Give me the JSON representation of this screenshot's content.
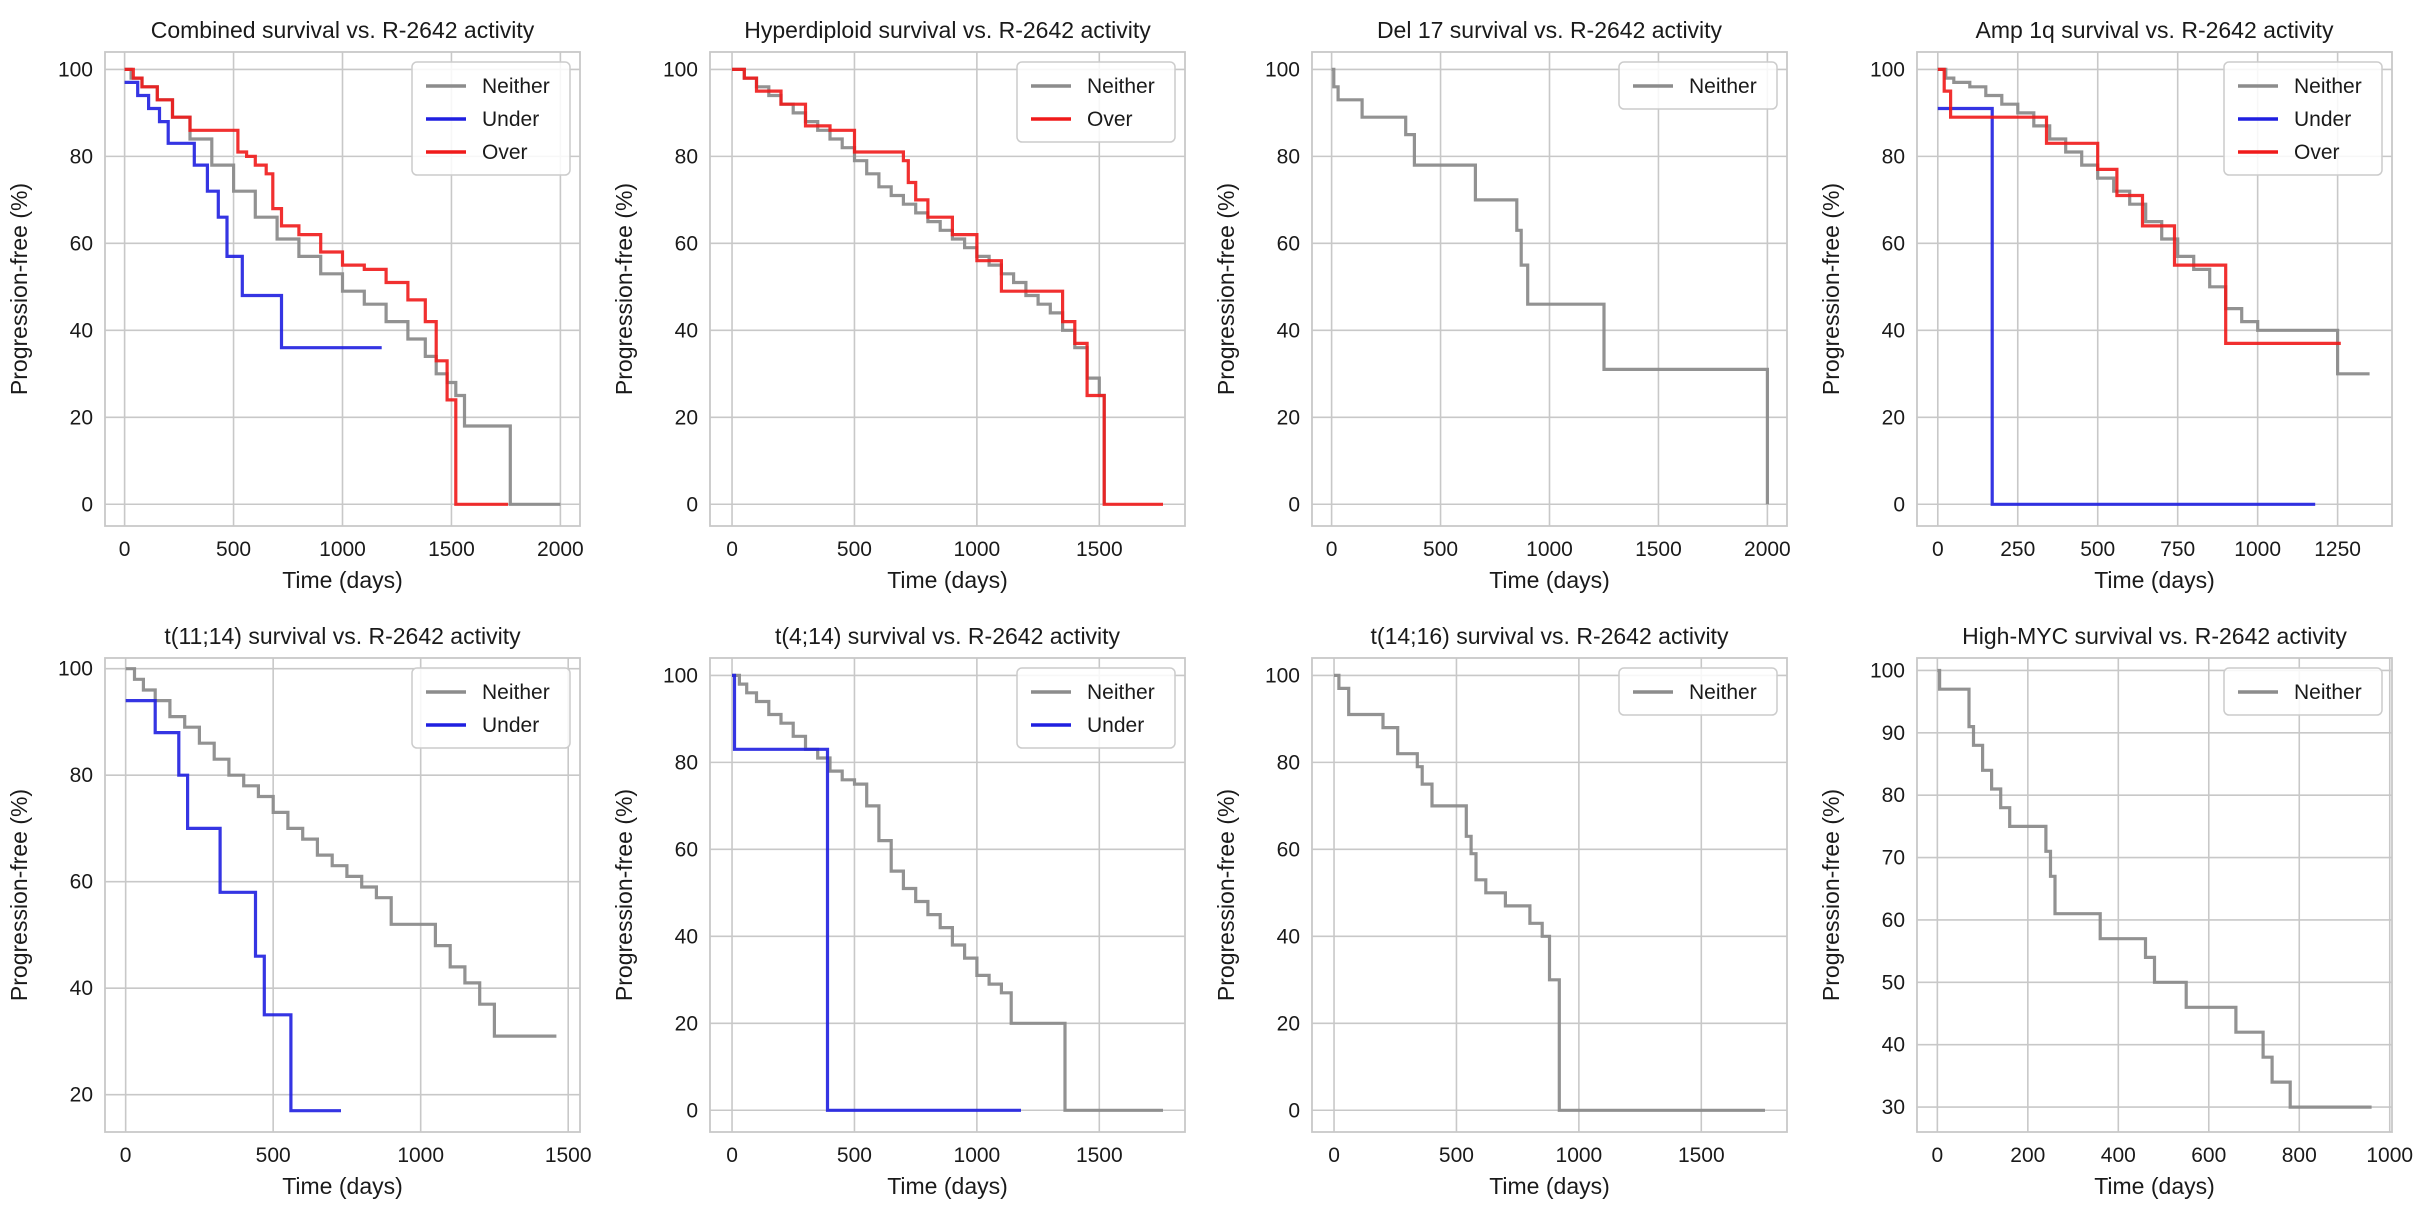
{
  "colors": {
    "neither": "#8c8c8c",
    "under": "#1f1fe0",
    "over": "#f01a1a",
    "grid": "#c8c8c8",
    "spine": "#c8c8c8"
  },
  "chart_data": [
    {
      "type": "line",
      "title": "Combined survival vs. R-2642 activity",
      "xlabel": "Time (days)",
      "ylabel": "Progression-free (%)",
      "xlim": [
        -90,
        2090
      ],
      "ylim": [
        -5,
        104
      ],
      "xticks": [
        0,
        500,
        1000,
        1500,
        2000
      ],
      "yticks": [
        0,
        20,
        40,
        60,
        80,
        100
      ],
      "legend": [
        "Neither",
        "Under",
        "Over"
      ],
      "series": [
        {
          "name": "Neither",
          "color_key": "neither",
          "x": [
            0,
            30,
            80,
            150,
            220,
            300,
            400,
            500,
            600,
            700,
            800,
            900,
            1000,
            1100,
            1200,
            1300,
            1380,
            1430,
            1480,
            1520,
            1560,
            1770,
            2000
          ],
          "y": [
            100,
            98,
            96,
            93,
            89,
            84,
            78,
            72,
            66,
            61,
            57,
            53,
            49,
            46,
            42,
            38,
            34,
            30,
            28,
            25,
            18,
            0,
            0
          ]
        },
        {
          "name": "Under",
          "color_key": "under",
          "x": [
            0,
            60,
            110,
            160,
            200,
            230,
            320,
            380,
            430,
            470,
            540,
            720,
            1180
          ],
          "y": [
            97,
            94,
            91,
            88,
            83,
            83,
            78,
            72,
            66,
            57,
            48,
            36,
            36
          ]
        },
        {
          "name": "Over",
          "color_key": "over",
          "x": [
            0,
            40,
            80,
            150,
            220,
            300,
            400,
            520,
            560,
            600,
            650,
            680,
            720,
            800,
            900,
            1000,
            1100,
            1200,
            1300,
            1380,
            1430,
            1480,
            1520,
            1760
          ],
          "y": [
            100,
            98,
            96,
            93,
            89,
            86,
            86,
            81,
            80,
            78,
            76,
            68,
            64,
            62,
            58,
            55,
            54,
            51,
            47,
            42,
            33,
            24,
            0,
            0
          ]
        }
      ]
    },
    {
      "type": "line",
      "title": "Hyperdiploid survival vs. R-2642 activity",
      "xlabel": "Time (days)",
      "ylabel": "Progression-free (%)",
      "xlim": [
        -90,
        1850
      ],
      "ylim": [
        -5,
        104
      ],
      "xticks": [
        0,
        500,
        1000,
        1500
      ],
      "yticks": [
        0,
        20,
        40,
        60,
        80,
        100
      ],
      "legend": [
        "Neither",
        "Over"
      ],
      "series": [
        {
          "name": "Neither",
          "color_key": "neither",
          "x": [
            0,
            50,
            100,
            150,
            200,
            250,
            300,
            350,
            400,
            450,
            500,
            550,
            600,
            650,
            700,
            750,
            800,
            850,
            900,
            950,
            1000,
            1050,
            1100,
            1150,
            1200,
            1250,
            1300,
            1350,
            1400,
            1450,
            1500,
            1520
          ],
          "y": [
            100,
            98,
            96,
            94,
            92,
            90,
            88,
            86,
            84,
            82,
            79,
            76,
            73,
            71,
            69,
            67,
            65,
            63,
            61,
            59,
            57,
            55,
            53,
            51,
            48,
            46,
            44,
            40,
            36,
            29,
            25,
            0
          ]
        },
        {
          "name": "Over",
          "color_key": "over",
          "x": [
            0,
            50,
            100,
            200,
            300,
            400,
            500,
            600,
            700,
            720,
            750,
            800,
            900,
            1000,
            1100,
            1200,
            1350,
            1400,
            1450,
            1520,
            1760
          ],
          "y": [
            100,
            98,
            95,
            92,
            87,
            86,
            81,
            81,
            79,
            74,
            70,
            66,
            62,
            56,
            49,
            49,
            42,
            37,
            25,
            0,
            0
          ]
        }
      ]
    },
    {
      "type": "line",
      "title": "Del 17 survival vs. R-2642 activity",
      "xlabel": "Time (days)",
      "ylabel": "Progression-free (%)",
      "xlim": [
        -90,
        2090
      ],
      "ylim": [
        -5,
        104
      ],
      "xticks": [
        0,
        500,
        1000,
        1500,
        2000
      ],
      "yticks": [
        0,
        20,
        40,
        60,
        80,
        100
      ],
      "legend": [
        "Neither"
      ],
      "series": [
        {
          "name": "Neither",
          "color_key": "neither",
          "x": [
            0,
            10,
            30,
            140,
            340,
            380,
            580,
            660,
            850,
            870,
            900,
            1250,
            2000
          ],
          "y": [
            100,
            96,
            93,
            89,
            85,
            78,
            78,
            70,
            63,
            55,
            46,
            31,
            0
          ]
        }
      ]
    },
    {
      "type": "line",
      "title": "Amp 1q survival vs. R-2642 activity",
      "xlabel": "Time (days)",
      "ylabel": "Progression-free (%)",
      "xlim": [
        -65,
        1420
      ],
      "ylim": [
        -5,
        104
      ],
      "xticks": [
        0,
        250,
        500,
        750,
        1000,
        1250
      ],
      "yticks": [
        0,
        20,
        40,
        60,
        80,
        100
      ],
      "legend": [
        "Neither",
        "Under",
        "Over"
      ],
      "series": [
        {
          "name": "Neither",
          "color_key": "neither",
          "x": [
            0,
            25,
            50,
            100,
            150,
            200,
            250,
            300,
            350,
            400,
            450,
            500,
            550,
            600,
            650,
            700,
            750,
            800,
            850,
            900,
            950,
            1000,
            1250,
            1350
          ],
          "y": [
            100,
            98,
            97,
            96,
            94,
            92,
            90,
            87,
            84,
            81,
            78,
            75,
            72,
            69,
            65,
            61,
            57,
            54,
            50,
            45,
            42,
            40,
            30,
            30
          ]
        },
        {
          "name": "Under",
          "color_key": "under",
          "x": [
            0,
            170,
            1180
          ],
          "y": [
            91,
            0,
            0
          ]
        },
        {
          "name": "Over",
          "color_key": "over",
          "x": [
            0,
            20,
            40,
            170,
            340,
            500,
            560,
            640,
            740,
            900,
            1260
          ],
          "y": [
            100,
            95,
            89,
            89,
            83,
            77,
            71,
            64,
            55,
            37,
            37
          ]
        }
      ]
    },
    {
      "type": "line",
      "title": "t(11;14) survival vs. R-2642 activity",
      "xlabel": "Time (days)",
      "ylabel": "Progression-free (%)",
      "xlim": [
        -70,
        1540
      ],
      "ylim": [
        13,
        102
      ],
      "xticks": [
        0,
        500,
        1000,
        1500
      ],
      "yticks": [
        20,
        40,
        60,
        80,
        100
      ],
      "legend": [
        "Neither",
        "Under"
      ],
      "series": [
        {
          "name": "Neither",
          "color_key": "neither",
          "x": [
            0,
            30,
            60,
            100,
            150,
            200,
            250,
            300,
            350,
            400,
            450,
            500,
            550,
            600,
            650,
            700,
            750,
            800,
            850,
            900,
            1050,
            1100,
            1150,
            1200,
            1250,
            1460
          ],
          "y": [
            100,
            98,
            96,
            94,
            91,
            89,
            86,
            83,
            80,
            78,
            76,
            73,
            70,
            68,
            65,
            63,
            61,
            59,
            57,
            52,
            48,
            44,
            41,
            37,
            31,
            31
          ]
        },
        {
          "name": "Under",
          "color_key": "under",
          "x": [
            0,
            100,
            180,
            210,
            320,
            440,
            470,
            560,
            730
          ],
          "y": [
            94,
            88,
            80,
            70,
            58,
            46,
            35,
            17,
            17
          ]
        }
      ]
    },
    {
      "type": "line",
      "title": "t(4;14) survival vs. R-2642 activity",
      "xlabel": "Time (days)",
      "ylabel": "Progression-free (%)",
      "xlim": [
        -90,
        1850
      ],
      "ylim": [
        -5,
        104
      ],
      "xticks": [
        0,
        500,
        1000,
        1500
      ],
      "yticks": [
        0,
        20,
        40,
        60,
        80,
        100
      ],
      "legend": [
        "Neither",
        "Under"
      ],
      "series": [
        {
          "name": "Neither",
          "color_key": "neither",
          "x": [
            0,
            30,
            60,
            100,
            150,
            200,
            250,
            300,
            350,
            400,
            450,
            500,
            550,
            600,
            650,
            700,
            750,
            800,
            850,
            900,
            950,
            1000,
            1050,
            1100,
            1140,
            1360,
            1760
          ],
          "y": [
            100,
            98,
            96,
            94,
            91,
            89,
            86,
            83,
            81,
            78,
            76,
            75,
            70,
            62,
            55,
            51,
            48,
            45,
            42,
            38,
            35,
            31,
            29,
            27,
            20,
            0,
            0
          ]
        },
        {
          "name": "Under",
          "color_key": "under",
          "x": [
            0,
            10,
            390,
            1180
          ],
          "y": [
            100,
            83,
            0,
            0
          ]
        }
      ]
    },
    {
      "type": "line",
      "title": "t(14;16) survival vs. R-2642 activity",
      "xlabel": "Time (days)",
      "ylabel": "Progression-free (%)",
      "xlim": [
        -90,
        1850
      ],
      "ylim": [
        -5,
        104
      ],
      "xticks": [
        0,
        500,
        1000,
        1500
      ],
      "yticks": [
        0,
        20,
        40,
        60,
        80,
        100
      ],
      "legend": [
        "Neither"
      ],
      "series": [
        {
          "name": "Neither",
          "color_key": "neither",
          "x": [
            0,
            20,
            60,
            200,
            260,
            340,
            360,
            400,
            540,
            560,
            580,
            620,
            700,
            800,
            850,
            880,
            920,
            1760
          ],
          "y": [
            100,
            97,
            91,
            88,
            82,
            79,
            75,
            70,
            63,
            59,
            53,
            50,
            47,
            43,
            40,
            30,
            0,
            0
          ]
        }
      ]
    },
    {
      "type": "line",
      "title": "High-MYC survival vs. R-2642 activity",
      "xlabel": "Time (days)",
      "ylabel": "Progression-free (%)",
      "xlim": [
        -45,
        1005
      ],
      "ylim": [
        26,
        102
      ],
      "xticks": [
        0,
        200,
        400,
        600,
        800,
        1000
      ],
      "yticks": [
        30,
        40,
        50,
        60,
        70,
        80,
        90,
        100
      ],
      "legend": [
        "Neither"
      ],
      "series": [
        {
          "name": "Neither",
          "color_key": "neither",
          "x": [
            0,
            5,
            70,
            80,
            100,
            120,
            140,
            160,
            240,
            250,
            260,
            360,
            460,
            480,
            550,
            660,
            720,
            740,
            780,
            960
          ],
          "y": [
            100,
            97,
            91,
            88,
            84,
            81,
            78,
            75,
            71,
            67,
            61,
            57,
            54,
            50,
            46,
            42,
            38,
            34,
            30,
            30
          ]
        }
      ]
    }
  ]
}
